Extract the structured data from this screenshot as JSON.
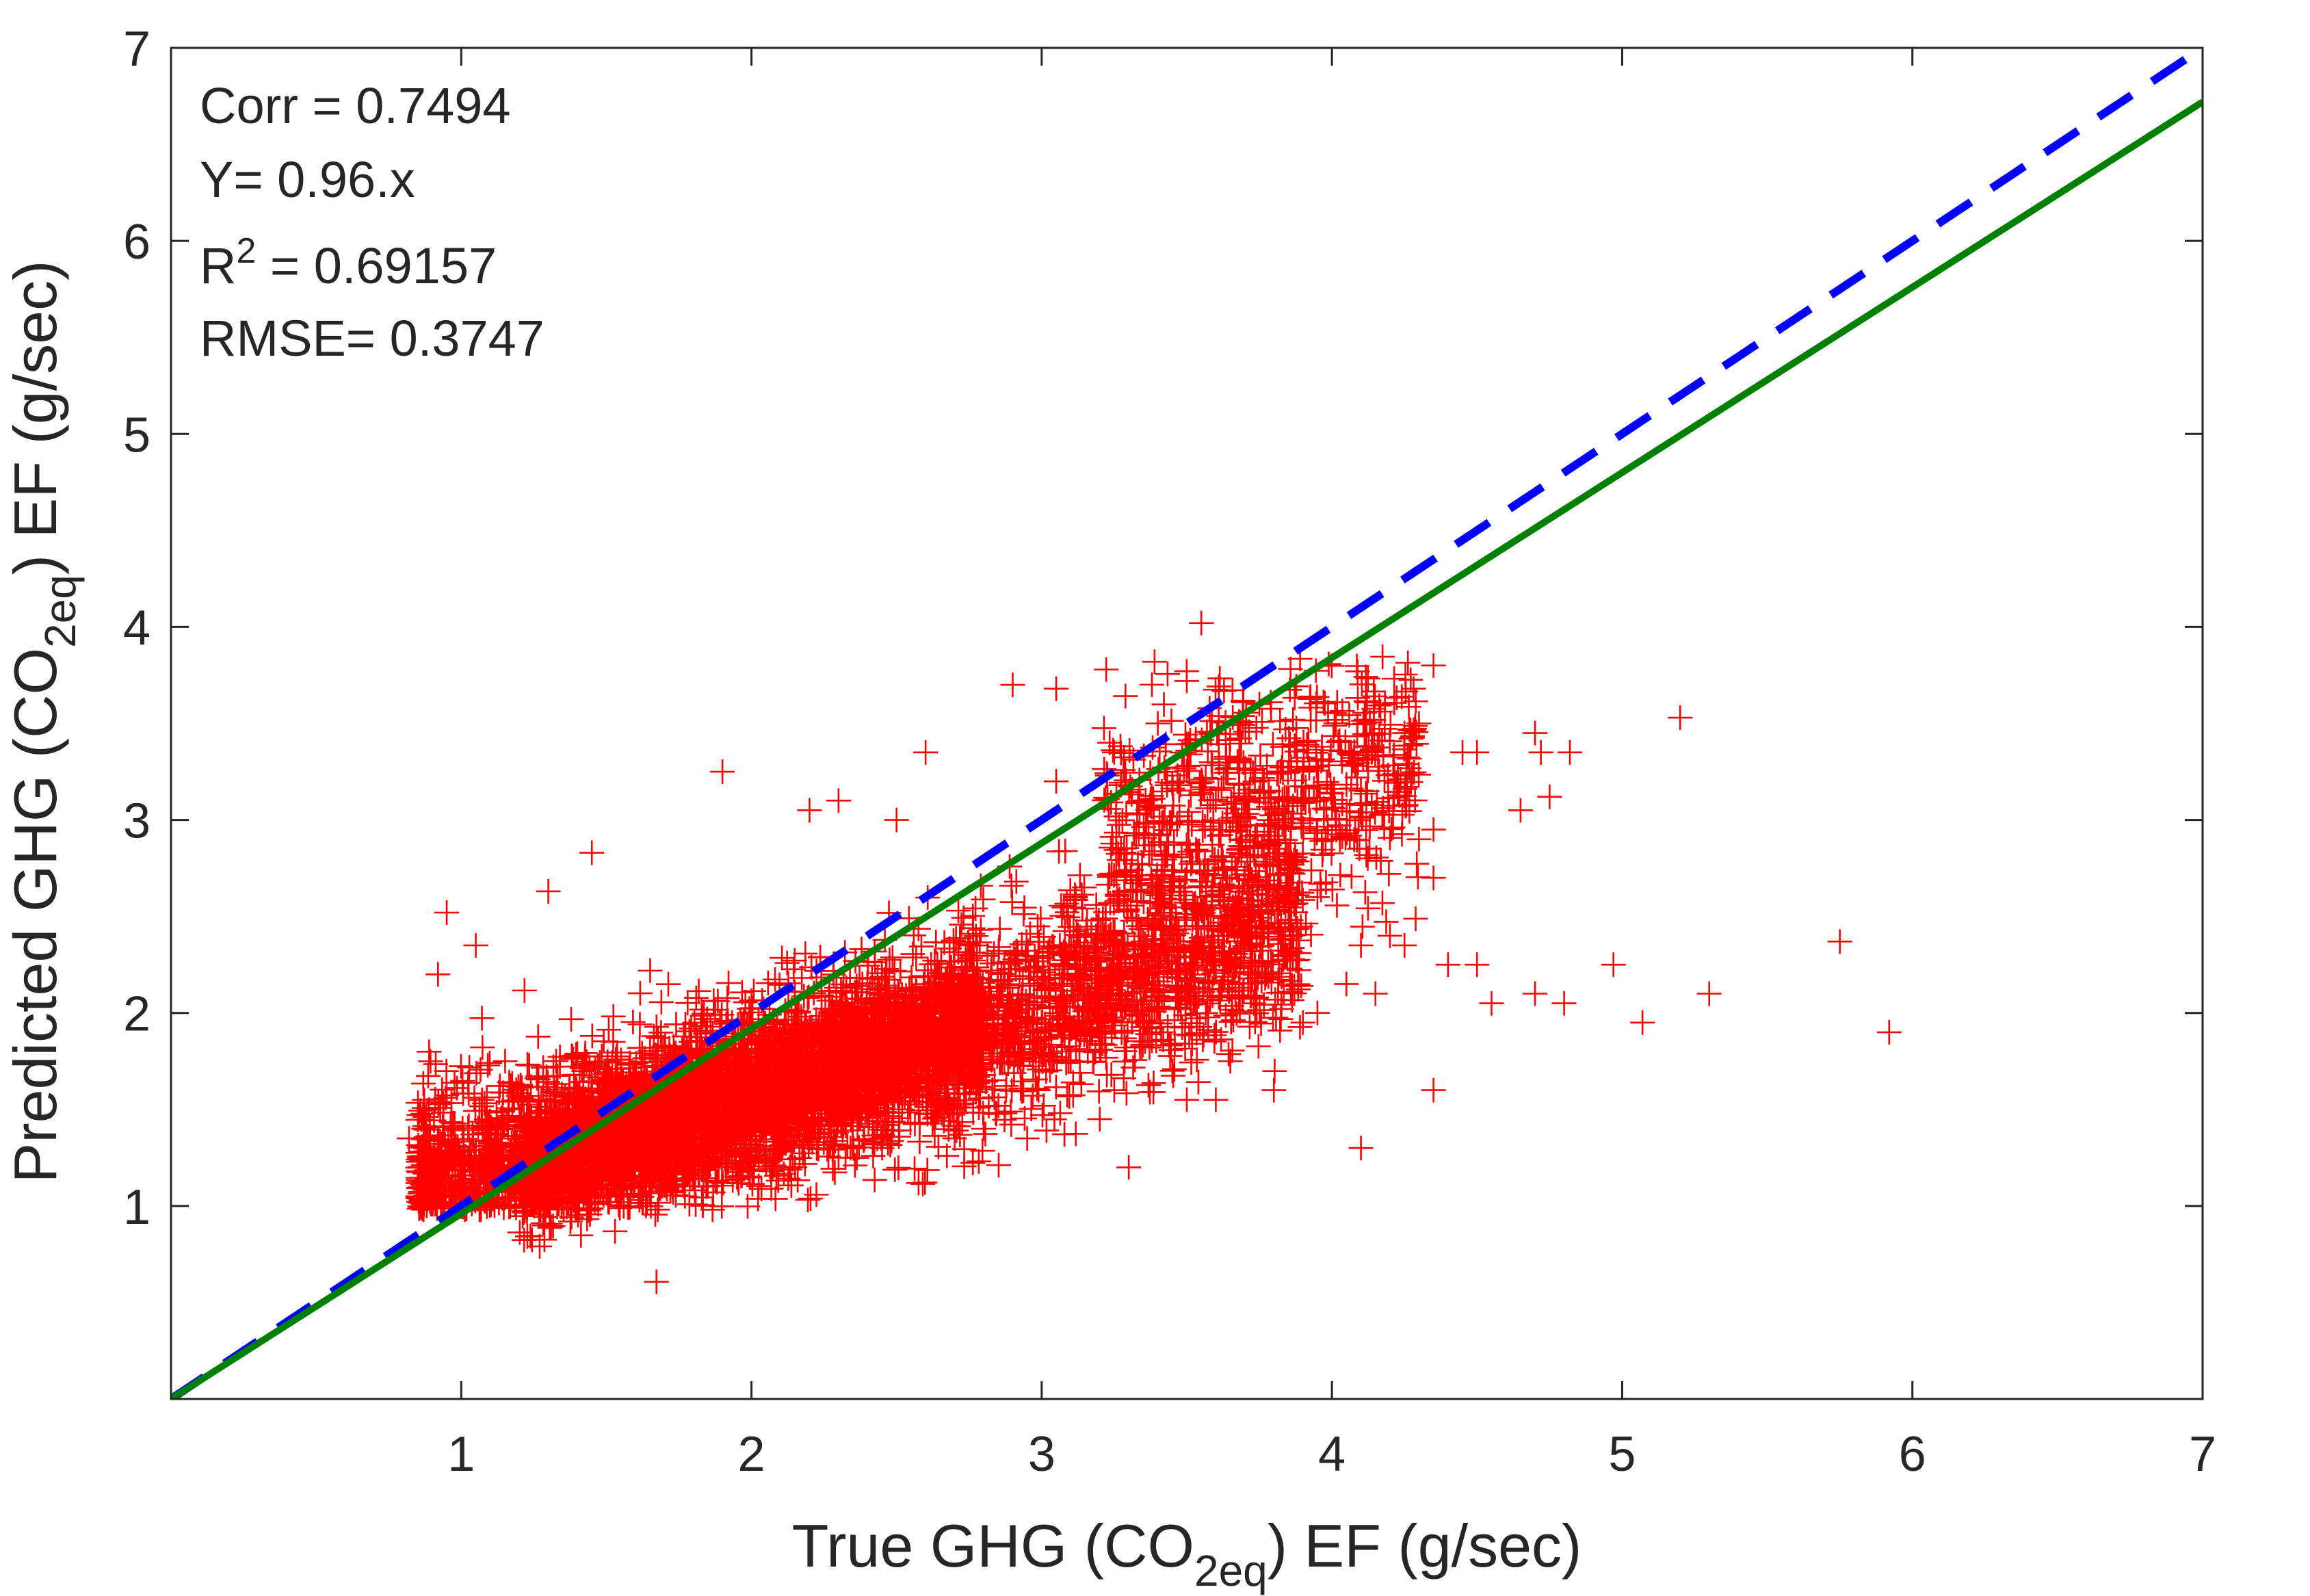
{
  "chart_data": {
    "type": "scatter",
    "title": "",
    "xlabel": {
      "prefix": "True GHG (CO",
      "sub": "2eq",
      "suffix": ") EF (g/sec)"
    },
    "ylabel": {
      "prefix": "Predicted GHG (CO",
      "sub": "2eq",
      "suffix": ") EF (g/sec)"
    },
    "xlim": [
      0,
      7
    ],
    "ylim": [
      0,
      7
    ],
    "xticks": [
      1,
      2,
      3,
      4,
      5,
      6,
      7
    ],
    "yticks": [
      1,
      2,
      3,
      4,
      5,
      6,
      7
    ],
    "xtick_labels": [
      "1",
      "2",
      "3",
      "4",
      "5",
      "6",
      "7"
    ],
    "ytick_labels": [
      "1",
      "2",
      "3",
      "4",
      "5",
      "6",
      "7"
    ],
    "grid": false,
    "annotations": {
      "corr": "Corr = 0.7494",
      "fit": "Y= 0.96.x",
      "r2_prefix": "R",
      "r2_sup": "2",
      "r2_value": " = 0.69157",
      "rmse": "RMSE= 0.3747"
    },
    "lines": [
      {
        "kind": "identity",
        "style": "dashed",
        "color": "#0000ff",
        "x": [
          0,
          7
        ],
        "y": [
          0,
          7
        ]
      },
      {
        "kind": "fit",
        "style": "solid",
        "color": "#008000",
        "slope": 0.96,
        "x": [
          0,
          7
        ],
        "y": [
          0,
          6.72
        ]
      }
    ],
    "series": [
      {
        "marker": "+",
        "color": "#ff0000",
        "points": [
          [
            0.95,
            2.52
          ],
          [
            1.45,
            2.83
          ],
          [
            1.3,
            2.63
          ],
          [
            1.05,
            2.35
          ],
          [
            0.92,
            2.2
          ],
          [
            0.85,
            1.05
          ],
          [
            0.82,
            1.35
          ],
          [
            1.25,
            1.0
          ],
          [
            1.9,
            3.25
          ],
          [
            2.3,
            3.1
          ],
          [
            2.5,
            3.0
          ],
          [
            2.9,
            3.7
          ],
          [
            3.05,
            3.68
          ],
          [
            3.4,
            3.5
          ],
          [
            3.5,
            3.72
          ],
          [
            3.55,
            4.02
          ],
          [
            3.75,
            3.6
          ],
          [
            3.3,
            1.2
          ],
          [
            3.5,
            1.55
          ],
          [
            3.6,
            1.55
          ],
          [
            3.8,
            1.6
          ],
          [
            4.1,
            1.3
          ],
          [
            4.35,
            1.6
          ],
          [
            4.35,
            3.8
          ],
          [
            4.25,
            3.45
          ],
          [
            4.3,
            3.5
          ],
          [
            4.3,
            2.9
          ],
          [
            4.35,
            2.7
          ],
          [
            4.4,
            2.25
          ],
          [
            4.5,
            2.25
          ],
          [
            4.55,
            2.05
          ],
          [
            4.7,
            2.1
          ],
          [
            4.8,
            2.05
          ],
          [
            4.97,
            2.25
          ],
          [
            5.07,
            1.95
          ],
          [
            5.3,
            2.1
          ],
          [
            5.75,
            2.37
          ],
          [
            5.92,
            1.9
          ],
          [
            5.2,
            3.53
          ],
          [
            4.7,
            3.45
          ],
          [
            4.72,
            3.35
          ],
          [
            4.82,
            3.35
          ],
          [
            4.65,
            3.05
          ],
          [
            4.75,
            3.12
          ],
          [
            4.5,
            3.35
          ],
          [
            4.35,
            2.95
          ],
          [
            4.25,
            2.35
          ],
          [
            4.2,
            2.4
          ],
          [
            4.1,
            2.35
          ],
          [
            4.05,
            2.15
          ],
          [
            4.15,
            2.1
          ],
          [
            3.95,
            2.0
          ],
          [
            3.9,
            1.95
          ],
          [
            3.65,
            1.75
          ],
          [
            3.45,
            1.7
          ],
          [
            3.25,
            1.6
          ],
          [
            3.2,
            1.45
          ],
          [
            3.1,
            1.75
          ],
          [
            2.95,
            1.35
          ],
          [
            2.8,
            1.4
          ],
          [
            2.7,
            1.35
          ],
          [
            2.45,
            1.3
          ],
          [
            2.3,
            1.25
          ],
          [
            2.15,
            1.2
          ],
          [
            1.95,
            1.15
          ],
          [
            1.55,
            1.05
          ],
          [
            3.9,
            3.25
          ],
          [
            3.95,
            2.6
          ],
          [
            4.0,
            2.9
          ],
          [
            3.85,
            2.75
          ],
          [
            4.45,
            3.35
          ],
          [
            3.25,
            3.35
          ],
          [
            3.05,
            3.2
          ],
          [
            2.6,
            3.35
          ],
          [
            2.2,
            3.05
          ]
        ]
      }
    ]
  }
}
